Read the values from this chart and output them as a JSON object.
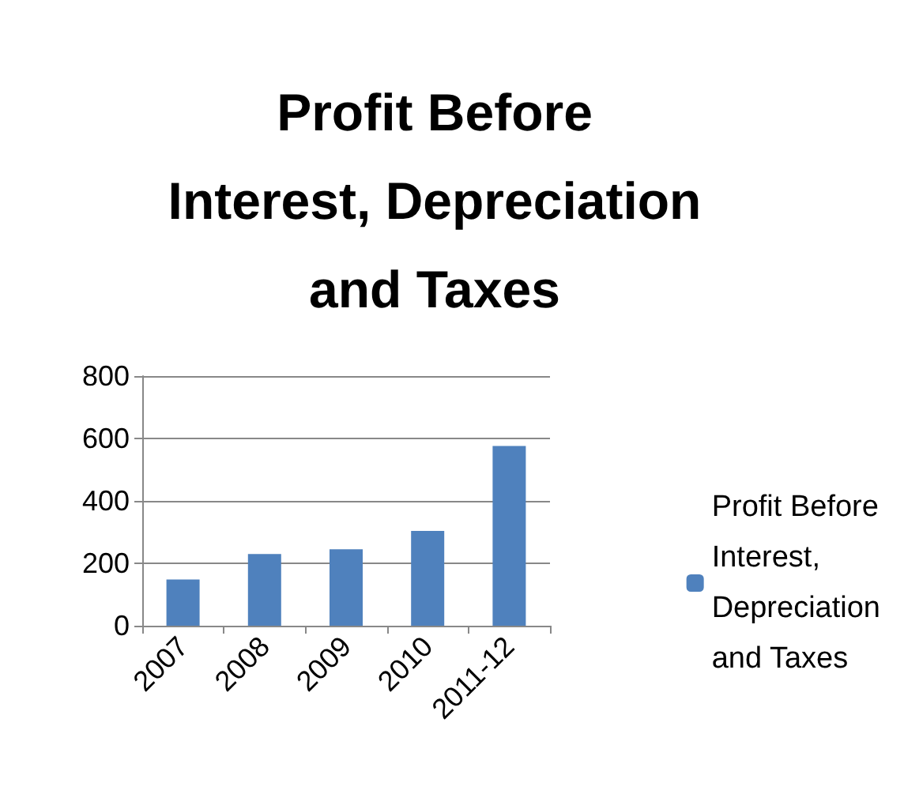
{
  "chart_data": {
    "type": "bar",
    "title": "Profit Before Interest, Depreciation and Taxes",
    "categories": [
      "2007",
      "2008",
      "2009",
      "2010",
      "2011-12"
    ],
    "series": [
      {
        "name": "Profit Before Interest, Depreciation and Taxes",
        "color": "#4f81bd",
        "values": [
          148,
          230,
          245,
          304,
          576
        ]
      }
    ],
    "ylim": [
      0,
      800
    ],
    "yticks": [
      0,
      200,
      400,
      600,
      800
    ],
    "grid": "y",
    "legend": "right"
  }
}
